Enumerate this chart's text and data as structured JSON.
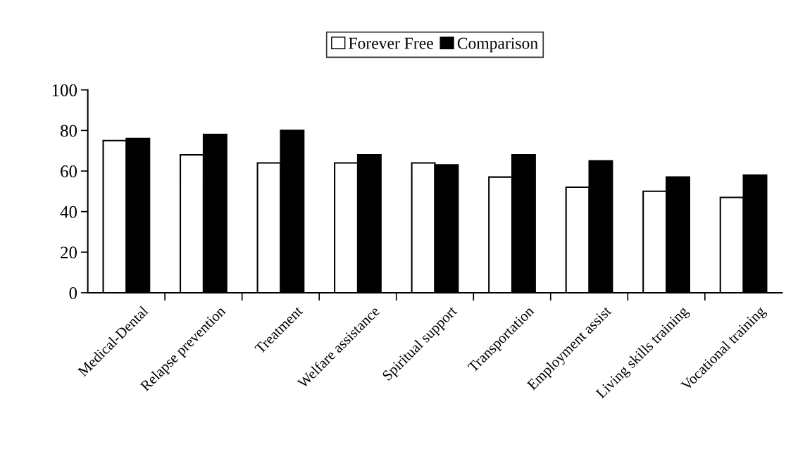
{
  "chart_data": {
    "type": "bar",
    "categories": [
      "Medical-Dental",
      "Relapse prevention",
      "Treatment",
      "Welfare assistance",
      "Spiritual support",
      "Transportation",
      "Employment assist",
      "Living skills training",
      "Vocational training"
    ],
    "series": [
      {
        "name": "Forever Free",
        "color": "#ffffff",
        "values": [
          75,
          68,
          64,
          64,
          64,
          57,
          52,
          50,
          47
        ]
      },
      {
        "name": "Comparison",
        "color": "#000000",
        "values": [
          76,
          78,
          80,
          68,
          63,
          68,
          65,
          57,
          58
        ]
      }
    ],
    "ylim": [
      0,
      100
    ],
    "yticks": [
      0,
      20,
      40,
      60,
      80,
      100
    ],
    "grid": false,
    "legend": "top"
  }
}
